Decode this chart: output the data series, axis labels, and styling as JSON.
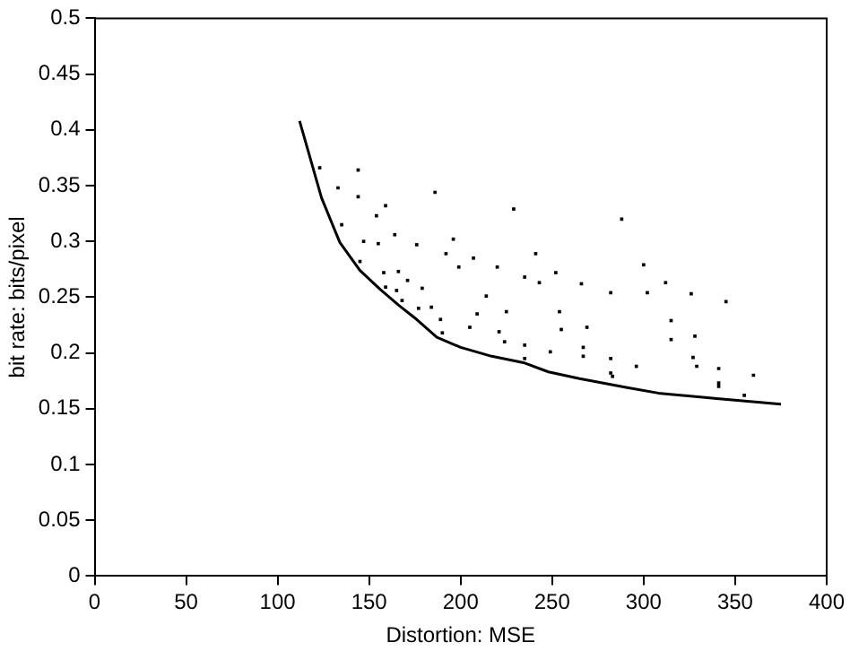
{
  "chart_data": {
    "type": "scatter",
    "xlabel": "Distortion: MSE",
    "ylabel": "bit rate: bits/pixel",
    "xlim": [
      0,
      400
    ],
    "ylim": [
      0,
      0.5
    ],
    "xticks": [
      0,
      50,
      100,
      150,
      200,
      250,
      300,
      350,
      400
    ],
    "yticks": [
      0,
      0.05,
      0.1,
      0.15,
      0.2,
      0.25,
      0.3,
      0.35,
      0.4,
      0.45,
      0.5
    ],
    "grid": false,
    "legend": false,
    "series": [
      {
        "type": "line",
        "color": "#000000",
        "marker": "none",
        "x": [
          112,
          124,
          134,
          145,
          156,
          166,
          176,
          187,
          200,
          217,
          235,
          248,
          265,
          291,
          308,
          340,
          375
        ],
        "values": [
          0.408,
          0.339,
          0.299,
          0.274,
          0.257,
          0.243,
          0.23,
          0.214,
          0.205,
          0.197,
          0.191,
          0.183,
          0.177,
          0.169,
          0.164,
          0.159,
          0.154
        ]
      },
      {
        "type": "scatter",
        "color": "#000000",
        "marker": "square",
        "x": [
          123,
          144,
          133,
          144,
          159,
          154,
          186,
          135,
          147,
          155,
          164,
          176,
          196,
          192,
          199,
          145,
          158,
          166,
          171,
          179,
          159,
          165,
          168,
          177,
          184,
          189,
          190,
          229,
          288,
          241,
          207,
          220,
          300,
          235,
          252,
          243,
          266,
          312,
          282,
          302,
          214,
          209,
          225,
          254,
          205,
          221,
          255,
          269,
          224,
          315,
          315,
          235,
          249,
          267,
          267,
          235,
          282,
          296,
          282,
          283,
          326,
          345,
          328,
          327,
          329,
          341,
          341,
          341,
          360,
          355
        ],
        "values": [
          0.366,
          0.364,
          0.348,
          0.34,
          0.332,
          0.323,
          0.344,
          0.315,
          0.3,
          0.298,
          0.306,
          0.297,
          0.302,
          0.289,
          0.277,
          0.282,
          0.272,
          0.273,
          0.265,
          0.258,
          0.259,
          0.256,
          0.247,
          0.24,
          0.241,
          0.23,
          0.218,
          0.329,
          0.32,
          0.289,
          0.285,
          0.277,
          0.279,
          0.268,
          0.272,
          0.263,
          0.262,
          0.263,
          0.254,
          0.254,
          0.251,
          0.235,
          0.237,
          0.237,
          0.223,
          0.219,
          0.221,
          0.223,
          0.21,
          0.229,
          0.212,
          0.207,
          0.201,
          0.205,
          0.197,
          0.195,
          0.195,
          0.188,
          0.182,
          0.179,
          0.253,
          0.246,
          0.215,
          0.196,
          0.188,
          0.186,
          0.173,
          0.17,
          0.18,
          0.162
        ]
      }
    ]
  }
}
